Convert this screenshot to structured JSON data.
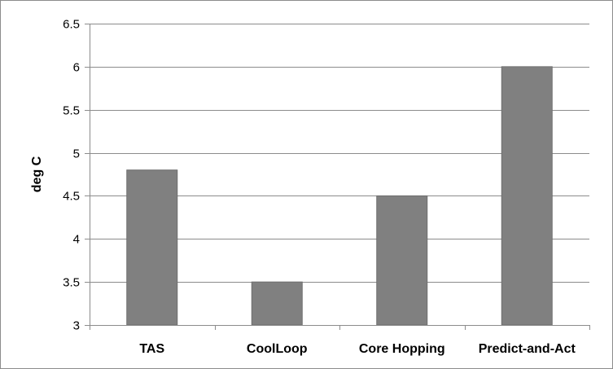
{
  "chart_data": {
    "type": "bar",
    "categories": [
      "TAS",
      "CoolLoop",
      "Core Hopping",
      "Predict-and-Act"
    ],
    "values": [
      4.8,
      3.5,
      4.5,
      6.0
    ],
    "title": "",
    "xlabel": "",
    "ylabel": "deg C",
    "ylim": [
      3,
      6.5
    ],
    "yticks": [
      "3",
      "3.5",
      "4",
      "4.5",
      "5",
      "5.5",
      "6",
      "6.5"
    ],
    "ytick_values": [
      3,
      3.5,
      4,
      4.5,
      5,
      5.5,
      6,
      6.5
    ],
    "grid": true,
    "legend": "none",
    "colors": {
      "bar": "#808080",
      "bar_edge": "#6e6e6e",
      "grid": "#8c8c8c",
      "axis": "#8c8c8c"
    }
  }
}
